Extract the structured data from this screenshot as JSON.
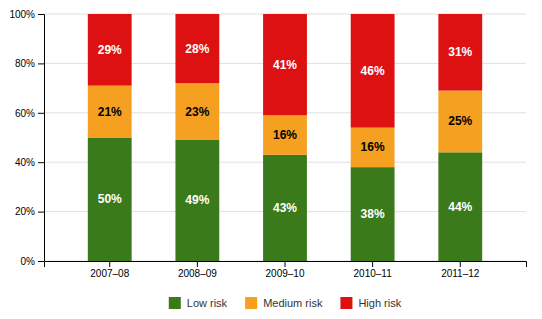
{
  "chart_data": {
    "type": "bar",
    "stacked": true,
    "categories": [
      "2007–08",
      "2008–09",
      "2009–10",
      "2010–11",
      "2011–12"
    ],
    "series": [
      {
        "name": "Low risk",
        "color": "#3a7a1a",
        "values": [
          50,
          49,
          43,
          38,
          44
        ],
        "value_labels": [
          "50%",
          "49%",
          "43%",
          "38%",
          "44%"
        ]
      },
      {
        "name": "Medium risk",
        "color": "#f5a020",
        "values": [
          21,
          23,
          16,
          16,
          25
        ],
        "value_labels": [
          "21%",
          "23%",
          "16%",
          "16%",
          "25%"
        ]
      },
      {
        "name": "High risk",
        "color": "#dd1111",
        "values": [
          29,
          28,
          41,
          46,
          31
        ],
        "value_labels": [
          "29%",
          "28%",
          "41%",
          "46%",
          "31%"
        ]
      }
    ],
    "ylim": [
      0,
      100
    ],
    "yticks": [
      {
        "value": 0,
        "label": "0%"
      },
      {
        "value": 20,
        "label": "20%"
      },
      {
        "value": 40,
        "label": "40%"
      },
      {
        "value": 60,
        "label": "60%"
      },
      {
        "value": 80,
        "label": "80%"
      },
      {
        "value": 100,
        "label": "100%"
      }
    ],
    "grid": true,
    "data_labels": true,
    "legend": "bottom"
  }
}
